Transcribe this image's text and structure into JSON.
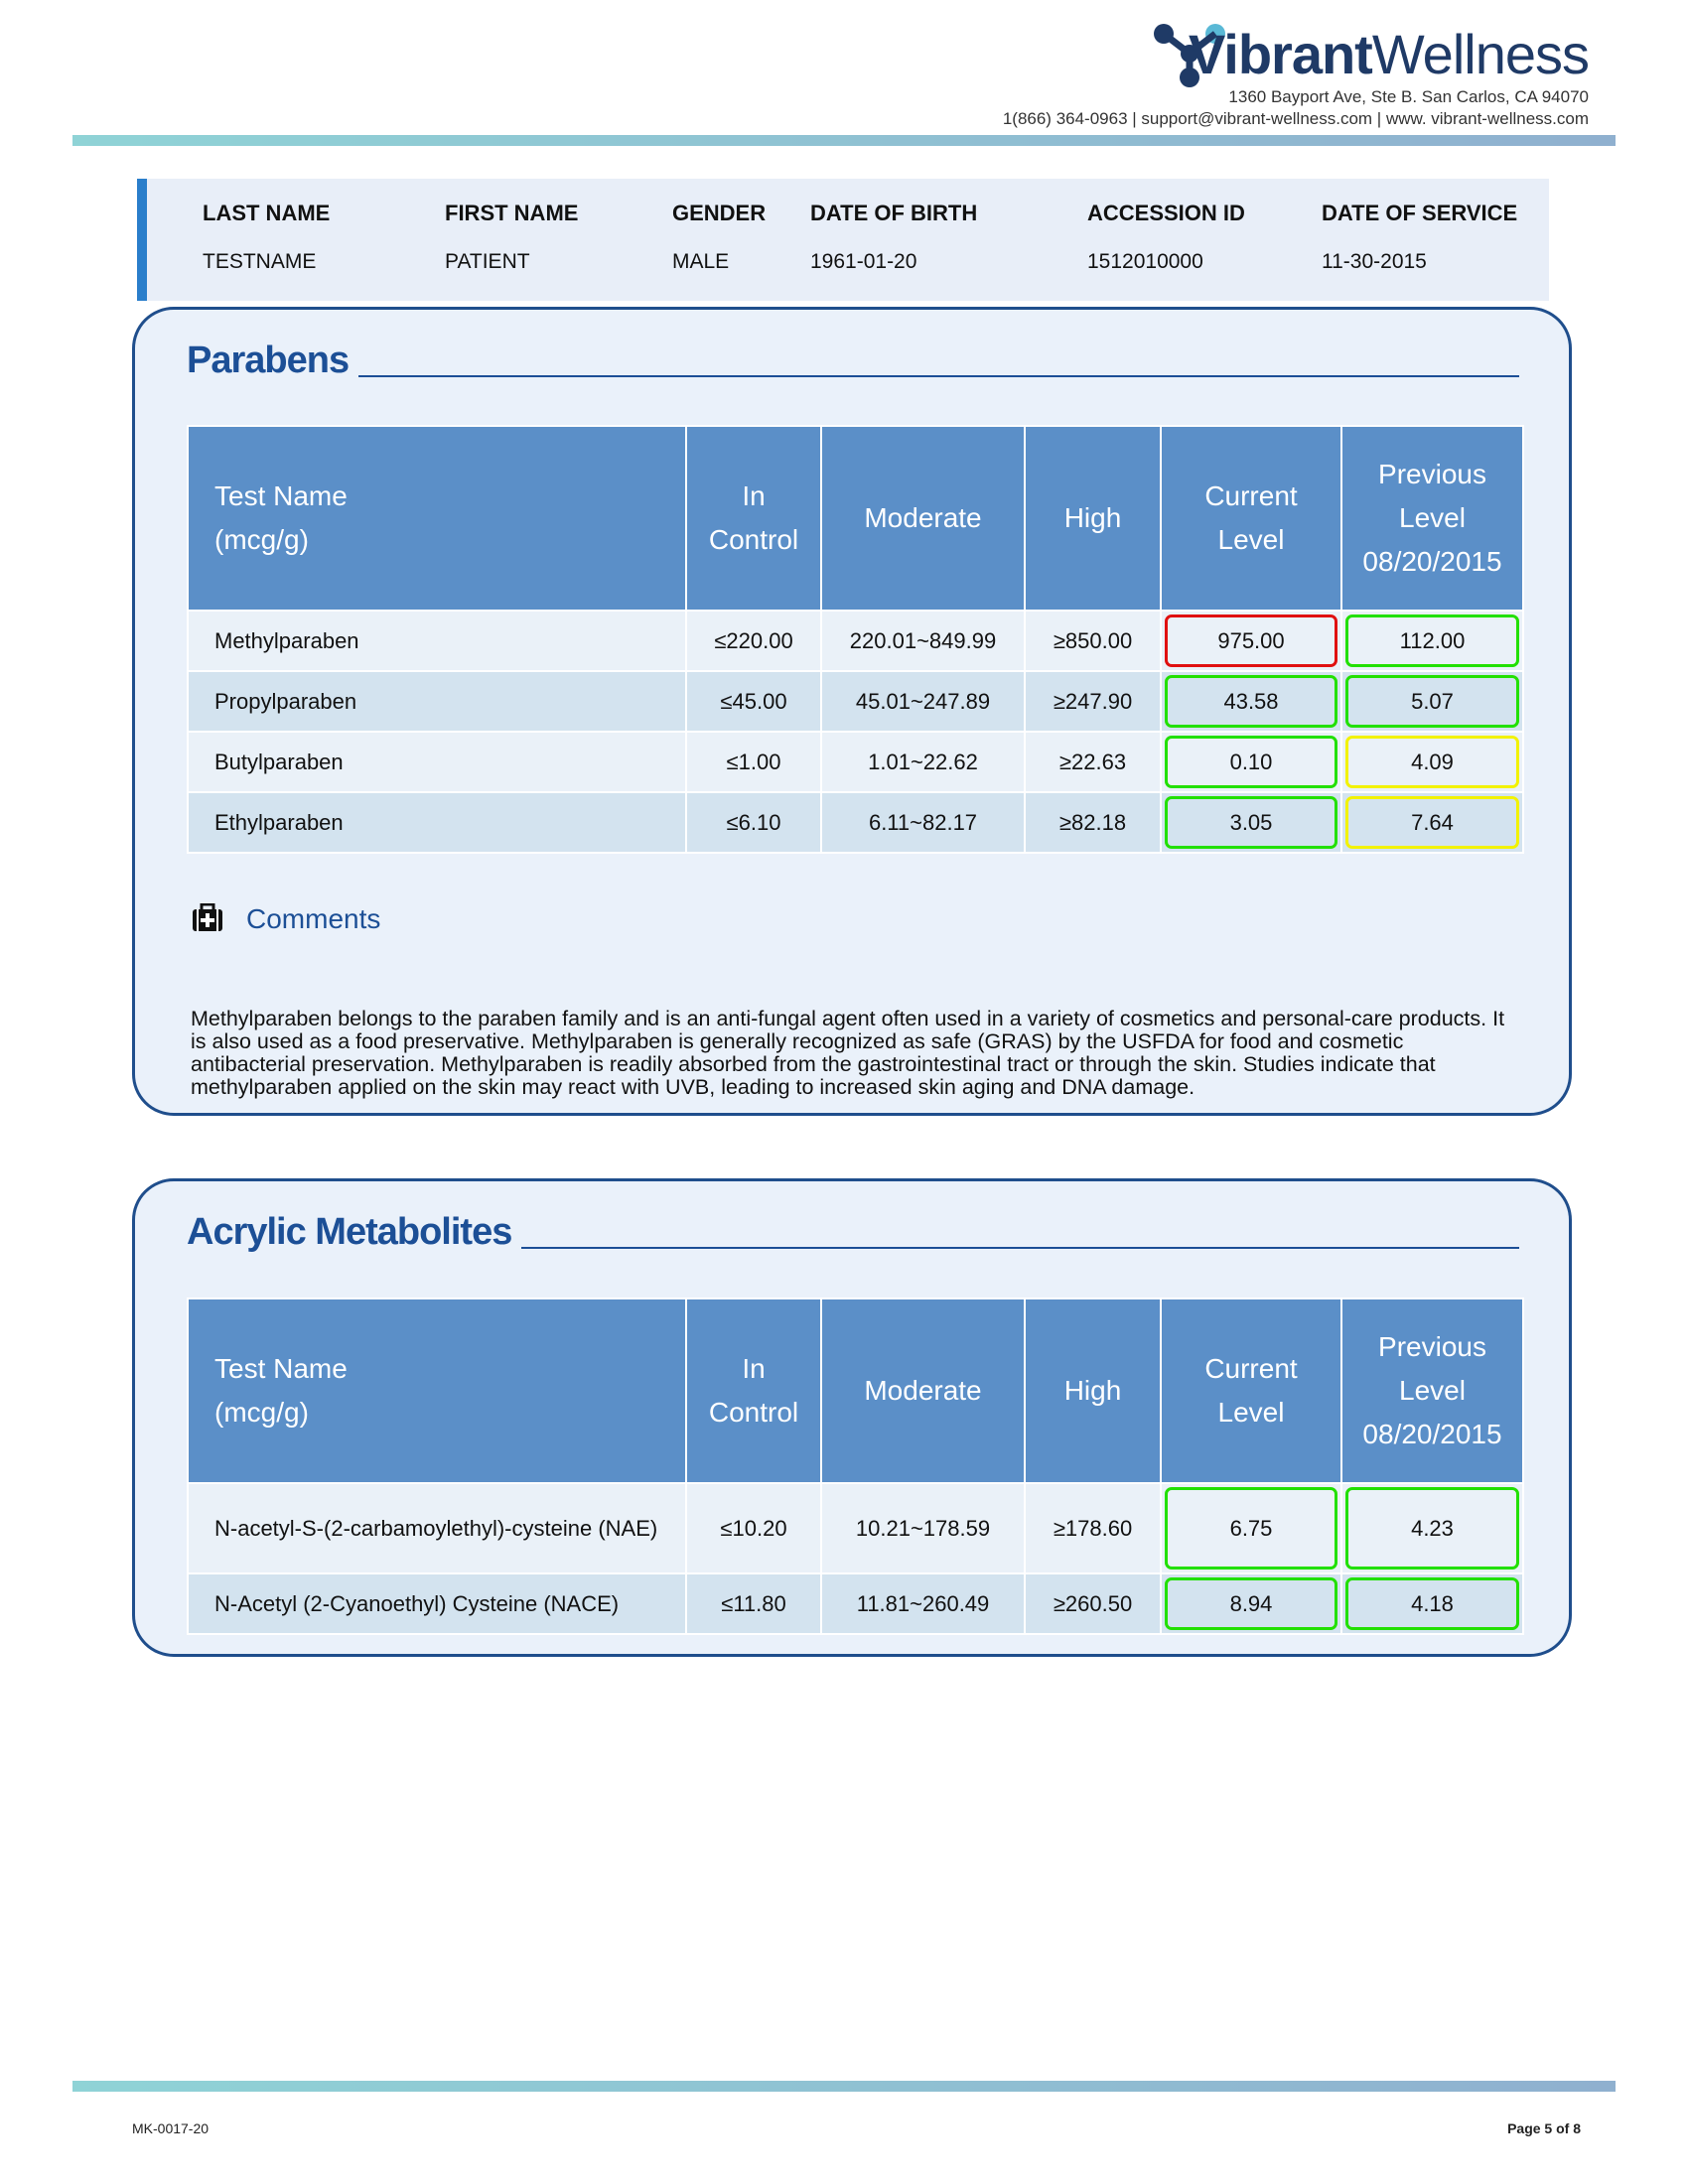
{
  "header": {
    "brand_bold": "Vibrant",
    "brand_light": "Wellness",
    "address": "1360 Bayport Ave, Ste B. San Carlos, CA 94070",
    "contact": "1(866) 364-0963 | support@vibrant-wellness.com | www. vibrant-wellness.com"
  },
  "patient": {
    "labels": [
      "LAST NAME",
      "FIRST NAME",
      "GENDER",
      "DATE OF BIRTH",
      "ACCESSION ID",
      "DATE OF SERVICE"
    ],
    "values": [
      "TESTNAME",
      "PATIENT",
      "MALE",
      "1961-01-20",
      "1512010000",
      "11-30-2015"
    ]
  },
  "sections": [
    {
      "title": "Parabens",
      "columns": [
        "Test Name\n(mcg/g)",
        "In\nControl",
        "Moderate",
        "High",
        "Current\nLevel",
        "Previous\nLevel\n08/20/2015"
      ],
      "rows": [
        {
          "name": "Methylparaben",
          "in_control": "≤220.00",
          "moderate": "220.01~849.99",
          "high": "≥850.00",
          "current": "975.00",
          "previous": "112.00",
          "current_color": "#e01010",
          "previous_color": "#22e000"
        },
        {
          "name": "Propylparaben",
          "in_control": "≤45.00",
          "moderate": "45.01~247.89",
          "high": "≥247.90",
          "current": "43.58",
          "previous": "5.07",
          "current_color": "#22e000",
          "previous_color": "#22e000"
        },
        {
          "name": "Butylparaben",
          "in_control": "≤1.00",
          "moderate": "1.01~22.62",
          "high": "≥22.63",
          "current": "0.10",
          "previous": "4.09",
          "current_color": "#22e000",
          "previous_color": "#f2f200"
        },
        {
          "name": "Ethylparaben",
          "in_control": "≤6.10",
          "moderate": "6.11~82.17",
          "high": "≥82.18",
          "current": "3.05",
          "previous": "7.64",
          "current_color": "#22e000",
          "previous_color": "#f2f200"
        }
      ],
      "comments_label": "Comments",
      "comments": "Methylparaben belongs to the paraben family and is an anti-fungal agent often used in a variety of cosmetics and personal-care products. It is also used as a food preservative. Methylparaben is generally recognized as safe (GRAS) by the USFDA for food and cosmetic antibacterial preservation. Methylparaben is readily absorbed from the gastrointestinal tract or through the skin. Studies indicate that methylparaben applied on the skin may react with UVB, leading to increased skin aging and DNA damage."
    },
    {
      "title": "Acrylic Metabolites",
      "columns": [
        "Test Name\n(mcg/g)",
        "In\nControl",
        "Moderate",
        "High",
        "Current\nLevel",
        "Previous\nLevel\n08/20/2015"
      ],
      "rows": [
        {
          "name": "N-acetyl-S-(2-carbamoylethyl)-cysteine (NAE)",
          "in_control": "≤10.20",
          "moderate": "10.21~178.59",
          "high": "≥178.60",
          "current": "6.75",
          "previous": "4.23",
          "current_color": "#22e000",
          "previous_color": "#22e000"
        },
        {
          "name": "N-Acetyl (2-Cyanoethyl) Cysteine (NACE)",
          "in_control": "≤11.80",
          "moderate": "11.81~260.49",
          "high": "≥260.50",
          "current": "8.94",
          "previous": "4.18",
          "current_color": "#22e000",
          "previous_color": "#22e000"
        }
      ]
    }
  ],
  "footer": {
    "code": "MK-0017-20",
    "page": "Page 5 of 8"
  }
}
